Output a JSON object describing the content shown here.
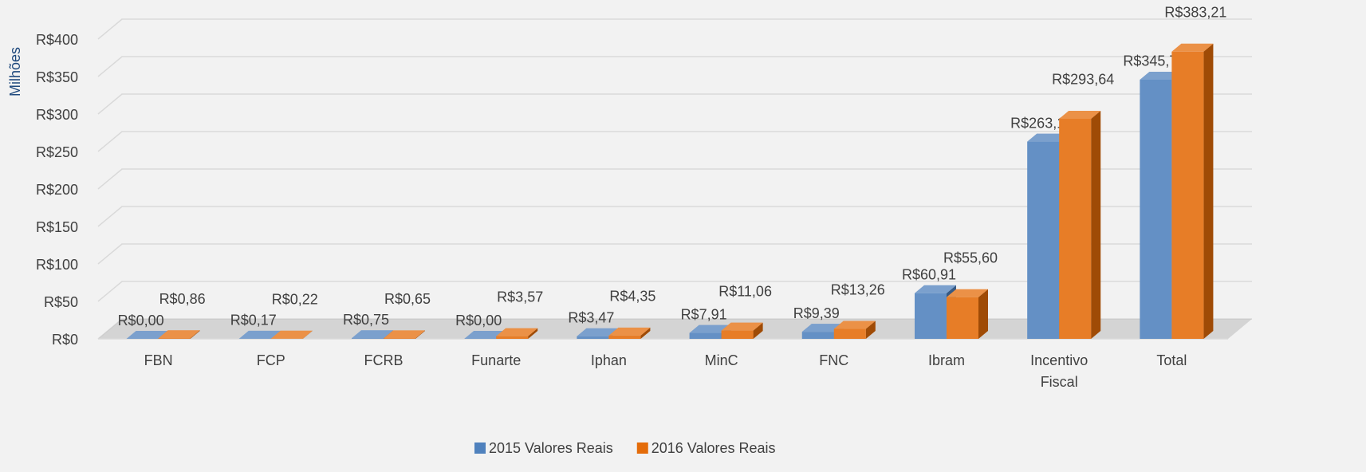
{
  "chart_data": {
    "type": "bar",
    "y_label": "Milhões",
    "categories": [
      "FBN",
      "FCP",
      "FCRB",
      "Funarte",
      "Iphan",
      "MinC",
      "FNC",
      "Ibram",
      "Incentivo Fiscal",
      "Total"
    ],
    "series": [
      {
        "name": "2015 Valores Reais",
        "color": "#4f81bd",
        "values": [
          0,
          0.17,
          0.75,
          0,
          3.47,
          7.91,
          9.39,
          60.91,
          263.19,
          345.79
        ],
        "value_labels": [
          "R$0,00",
          "R$0,17",
          "R$0,75",
          "R$0,00",
          "R$3,47",
          "R$7,91",
          "R$9,39",
          "R$60,91",
          "R$263,19",
          "R$345,79"
        ]
      },
      {
        "name": "2016 Valores Reais",
        "color": "#e46c0a",
        "values": [
          0.86,
          0.22,
          0.65,
          3.57,
          4.35,
          11.06,
          13.26,
          55.6,
          293.64,
          383.21
        ],
        "value_labels": [
          "R$0,86",
          "R$0,22",
          "R$0,65",
          "R$3,57",
          "R$4,35",
          "R$11,06",
          "R$13,26",
          "R$55,60",
          "R$293,64",
          "R$383,21"
        ]
      }
    ],
    "ylim": [
      0,
      400
    ],
    "yticks": [
      {
        "value": 0,
        "label": "R$0"
      },
      {
        "value": 50,
        "label": "R$50"
      },
      {
        "value": 100,
        "label": "R$100"
      },
      {
        "value": 150,
        "label": "R$150"
      },
      {
        "value": 200,
        "label": "R$200"
      },
      {
        "value": 250,
        "label": "R$250"
      },
      {
        "value": 300,
        "label": "R$300"
      },
      {
        "value": 350,
        "label": "R$350"
      },
      {
        "value": 400,
        "label": "R$400"
      }
    ],
    "grid": true,
    "legend": "bottom"
  }
}
